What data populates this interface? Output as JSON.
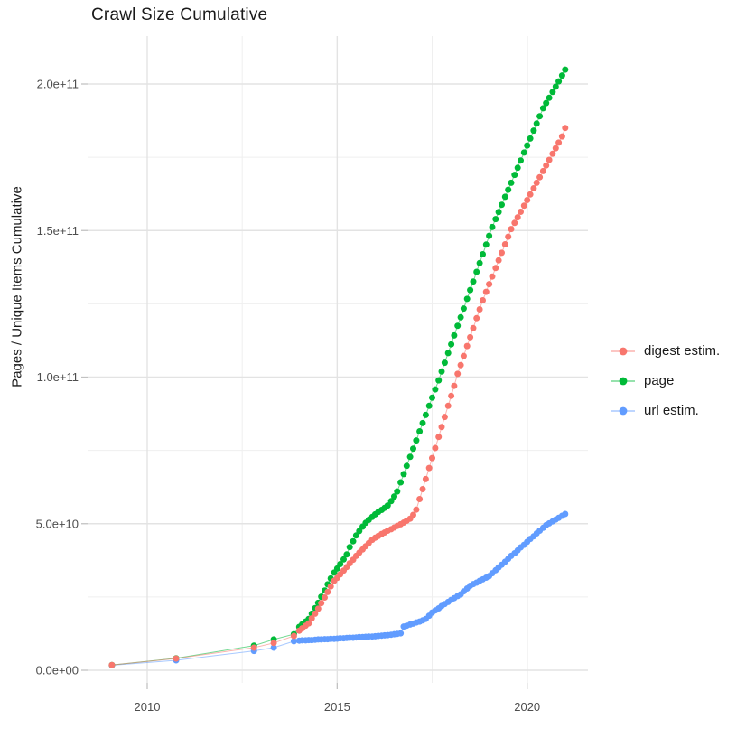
{
  "title": "Crawl Size Cumulative",
  "axes": {
    "y_label": "Pages / Unique Items Cumulative",
    "y_ticks": [
      {
        "value_billions": 0,
        "label": "0.0e+00"
      },
      {
        "value_billions": 50,
        "label": "5.0e+10"
      },
      {
        "value_billions": 100,
        "label": "1.0e+11"
      },
      {
        "value_billions": 150,
        "label": "1.5e+11"
      },
      {
        "value_billions": 200,
        "label": "2.0e+11"
      }
    ],
    "y_minor_gridlines_billions": [
      25,
      75,
      125,
      175
    ],
    "x_ticks": [
      {
        "value": 2010,
        "label": "2010"
      },
      {
        "value": 2015,
        "label": "2015"
      },
      {
        "value": 2020,
        "label": "2020"
      }
    ],
    "x_minor_gridlines": [
      2012.5,
      2017.5
    ]
  },
  "legend": [
    {
      "label": "digest estim.",
      "color": "#F8766D"
    },
    {
      "label": "page",
      "color": "#00BA38"
    },
    {
      "label": "url estim.",
      "color": "#619CFF"
    }
  ],
  "colors": {
    "grid_major": "#e3e3e3",
    "grid_minor": "#efefef",
    "tick_mark": "#c2c2c2",
    "tick_label": "#4d4d4d"
  },
  "chart_data": {
    "type": "scatter",
    "title": "Crawl Size Cumulative",
    "xlabel": "",
    "ylabel": "Pages / Unique Items Cumulative",
    "x_unit": "decimal year (one point per crawl)",
    "y_scale": 1000000000,
    "y_unit": "items; y values below are in billions (1e9)",
    "xlim": [
      2008.5,
      2021.6
    ],
    "ylim": [
      0,
      216000000000
    ],
    "grid": true,
    "legend_position": "right",
    "x": [
      2009.07,
      2010.76,
      2012.81,
      2013.33,
      2013.86,
      2014.0,
      2014.08,
      2014.17,
      2014.25,
      2014.33,
      2014.42,
      2014.5,
      2014.58,
      2014.67,
      2014.75,
      2014.83,
      2014.92,
      2015.0,
      2015.08,
      2015.17,
      2015.25,
      2015.33,
      2015.42,
      2015.5,
      2015.58,
      2015.67,
      2015.75,
      2015.83,
      2015.92,
      2016.0,
      2016.08,
      2016.17,
      2016.25,
      2016.33,
      2016.42,
      2016.5,
      2016.58,
      2016.67,
      2016.75,
      2016.83,
      2016.92,
      2017.0,
      2017.08,
      2017.17,
      2017.25,
      2017.33,
      2017.42,
      2017.5,
      2017.58,
      2017.67,
      2017.75,
      2017.83,
      2017.92,
      2018.0,
      2018.08,
      2018.17,
      2018.25,
      2018.33,
      2018.42,
      2018.5,
      2018.58,
      2018.67,
      2018.75,
      2018.83,
      2018.92,
      2019.0,
      2019.08,
      2019.17,
      2019.25,
      2019.33,
      2019.42,
      2019.5,
      2019.58,
      2019.67,
      2019.75,
      2019.83,
      2019.92,
      2020.0,
      2020.08,
      2020.17,
      2020.25,
      2020.33,
      2020.42,
      2020.5,
      2020.58,
      2020.67,
      2020.75,
      2020.83,
      2020.92,
      2021.0
    ],
    "series": [
      {
        "name": "digest estim.",
        "color": "#F8766D",
        "values_billions": [
          1.8,
          4.0,
          7.7,
          9.3,
          11.7,
          13.5,
          14.3,
          15.2,
          16.0,
          17.7,
          19.3,
          21.0,
          22.9,
          24.8,
          26.7,
          28.6,
          30.5,
          31.5,
          32.7,
          34.0,
          35.2,
          36.5,
          37.7,
          39.0,
          40.1,
          41.2,
          42.3,
          43.4,
          44.5,
          45.2,
          45.8,
          46.5,
          47.0,
          47.6,
          48.1,
          48.7,
          49.2,
          49.8,
          50.4,
          51.0,
          51.7,
          53.0,
          54.8,
          58.4,
          61.8,
          65.2,
          69.0,
          72.4,
          75.8,
          79.6,
          83.0,
          86.4,
          90.2,
          93.6,
          97.0,
          101.1,
          104.1,
          107.2,
          110.6,
          113.6,
          116.7,
          120.1,
          123.1,
          126.2,
          129.1,
          131.7,
          134.3,
          137.2,
          139.8,
          142.4,
          145.3,
          147.9,
          150.5,
          152.6,
          154.5,
          156.4,
          158.5,
          160.4,
          162.3,
          164.4,
          166.3,
          168.2,
          170.3,
          172.2,
          174.1,
          176.2,
          178.1,
          180.0,
          182.1,
          185.0
        ]
      },
      {
        "name": "page",
        "color": "#00BA38",
        "values_billions": [
          1.8,
          4.1,
          8.4,
          10.5,
          12.3,
          14.8,
          15.7,
          16.6,
          17.5,
          19.3,
          21.2,
          23.0,
          25.1,
          27.2,
          29.3,
          31.3,
          33.3,
          34.7,
          36.2,
          37.8,
          39.5,
          42.0,
          44.0,
          46.0,
          47.5,
          49.0,
          50.3,
          51.3,
          52.3,
          53.2,
          54.0,
          54.7,
          55.4,
          56.2,
          57.7,
          59.3,
          61.0,
          64.1,
          66.9,
          69.7,
          72.8,
          75.6,
          78.4,
          81.5,
          84.3,
          87.1,
          90.2,
          93.0,
          95.8,
          98.9,
          101.9,
          104.9,
          108.2,
          111.2,
          114.2,
          117.5,
          120.4,
          123.4,
          126.7,
          129.7,
          132.6,
          135.9,
          138.9,
          141.9,
          145.2,
          148.2,
          151.2,
          153.9,
          156.3,
          158.8,
          161.5,
          163.9,
          166.3,
          169.0,
          171.4,
          173.9,
          176.6,
          179.0,
          181.4,
          184.1,
          186.5,
          189.0,
          191.7,
          193.5,
          195.3,
          197.3,
          199.1,
          200.9,
          202.9,
          204.9
        ]
      },
      {
        "name": "url estim.",
        "color": "#619CFF",
        "values_billions": [
          1.7,
          3.4,
          6.6,
          7.7,
          9.9,
          10.1,
          10.2,
          10.2,
          10.3,
          10.3,
          10.4,
          10.5,
          10.5,
          10.6,
          10.6,
          10.7,
          10.7,
          10.8,
          10.9,
          10.9,
          11.0,
          11.1,
          11.1,
          11.2,
          11.3,
          11.3,
          11.4,
          11.5,
          11.5,
          11.6,
          11.7,
          11.8,
          11.9,
          12.0,
          12.1,
          12.3,
          12.4,
          12.6,
          14.9,
          15.2,
          15.6,
          15.9,
          16.3,
          16.6,
          17.0,
          17.5,
          18.6,
          19.7,
          20.4,
          21.1,
          21.9,
          22.6,
          23.3,
          24.0,
          24.6,
          25.3,
          25.9,
          26.9,
          27.9,
          28.8,
          29.4,
          29.9,
          30.5,
          31.0,
          31.6,
          32.1,
          33.1,
          34.1,
          35.1,
          36.0,
          37.0,
          38.0,
          39.0,
          39.9,
          40.9,
          41.9,
          42.8,
          43.8,
          44.8,
          45.7,
          46.7,
          47.6,
          48.6,
          49.5,
          50.1,
          50.8,
          51.4,
          52.0,
          52.7,
          53.3
        ]
      }
    ]
  }
}
